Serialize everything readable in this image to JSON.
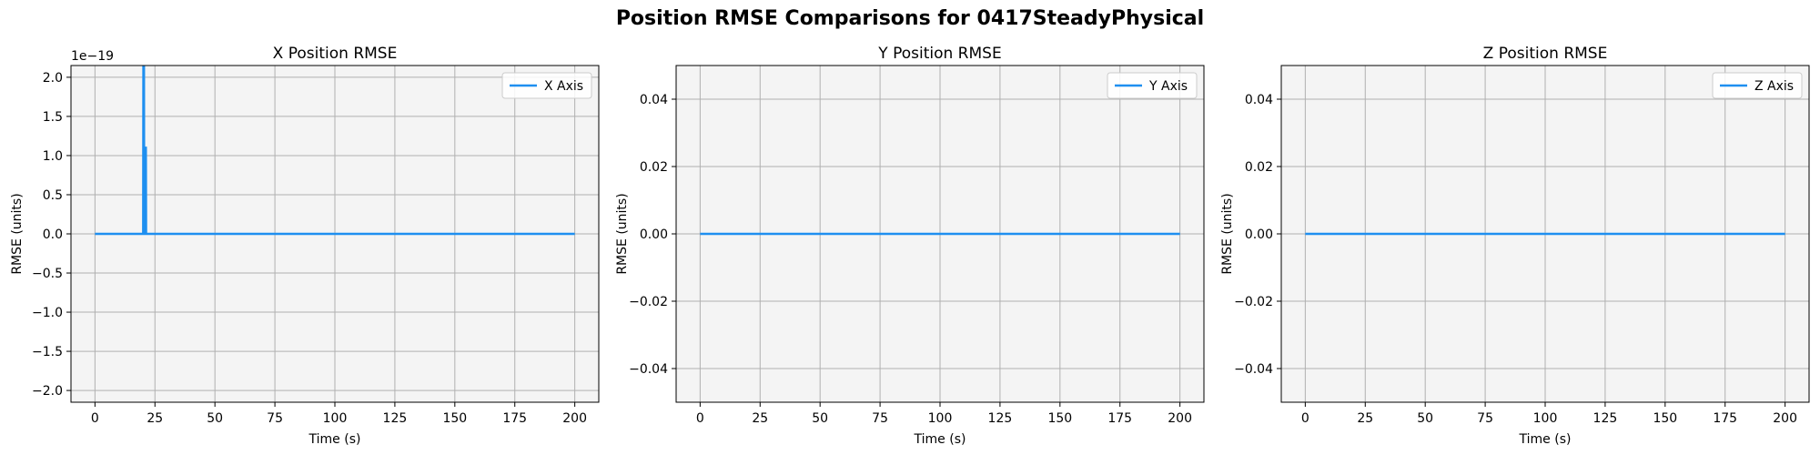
{
  "figure_title": "Position RMSE Comparisons for 0417SteadyPhysical",
  "colors": {
    "line": "#1e8ff0",
    "plot_bg": "#f4f4f4",
    "grid": "#b0b0b0"
  },
  "chart_data": [
    {
      "type": "line",
      "title": "X Position RMSE",
      "xlabel": "Time (s)",
      "ylabel": "RMSE (units)",
      "offset_label": "1e−19",
      "xlim": [
        -10,
        210
      ],
      "ylim": [
        -2.15,
        2.15
      ],
      "xticks": [
        0,
        25,
        50,
        75,
        100,
        125,
        150,
        175,
        200
      ],
      "yticks": [
        -2.0,
        -1.5,
        -1.0,
        -0.5,
        0.0,
        0.5,
        1.0,
        1.5,
        2.0
      ],
      "ytick_labels": [
        "−2.0",
        "−1.5",
        "−1.0",
        "−0.5",
        "0.0",
        "0.5",
        "1.0",
        "1.5",
        "2.0"
      ],
      "legend": "X Axis",
      "legend_loc": "top-right",
      "series": [
        {
          "name": "X Axis",
          "x": [
            0,
            20.1,
            20.2,
            20.4,
            20.5,
            20.9,
            21.0,
            21.2,
            21.3,
            200
          ],
          "y": [
            0,
            0,
            2.5,
            2.5,
            0,
            0,
            1.1,
            1.1,
            0,
            0
          ]
        }
      ]
    },
    {
      "type": "line",
      "title": "Y Position RMSE",
      "xlabel": "Time (s)",
      "ylabel": "RMSE (units)",
      "offset_label": "",
      "xlim": [
        -10,
        210
      ],
      "ylim": [
        -0.05,
        0.05
      ],
      "xticks": [
        0,
        25,
        50,
        75,
        100,
        125,
        150,
        175,
        200
      ],
      "yticks": [
        -0.04,
        -0.02,
        0.0,
        0.02,
        0.04
      ],
      "ytick_labels": [
        "−0.04",
        "−0.02",
        "0.00",
        "0.02",
        "0.04"
      ],
      "legend": "Y Axis",
      "legend_loc": "top-right",
      "series": [
        {
          "name": "Y Axis",
          "x": [
            0,
            200
          ],
          "y": [
            0,
            0
          ]
        }
      ]
    },
    {
      "type": "line",
      "title": "Z Position RMSE",
      "xlabel": "Time (s)",
      "ylabel": "RMSE (units)",
      "offset_label": "",
      "xlim": [
        -10,
        210
      ],
      "ylim": [
        -0.05,
        0.05
      ],
      "xticks": [
        0,
        25,
        50,
        75,
        100,
        125,
        150,
        175,
        200
      ],
      "yticks": [
        -0.04,
        -0.02,
        0.0,
        0.02,
        0.04
      ],
      "ytick_labels": [
        "−0.04",
        "−0.02",
        "0.00",
        "0.02",
        "0.04"
      ],
      "legend": "Z Axis",
      "legend_loc": "top-right",
      "series": [
        {
          "name": "Z Axis",
          "x": [
            0,
            200
          ],
          "y": [
            0,
            0
          ]
        }
      ]
    }
  ]
}
